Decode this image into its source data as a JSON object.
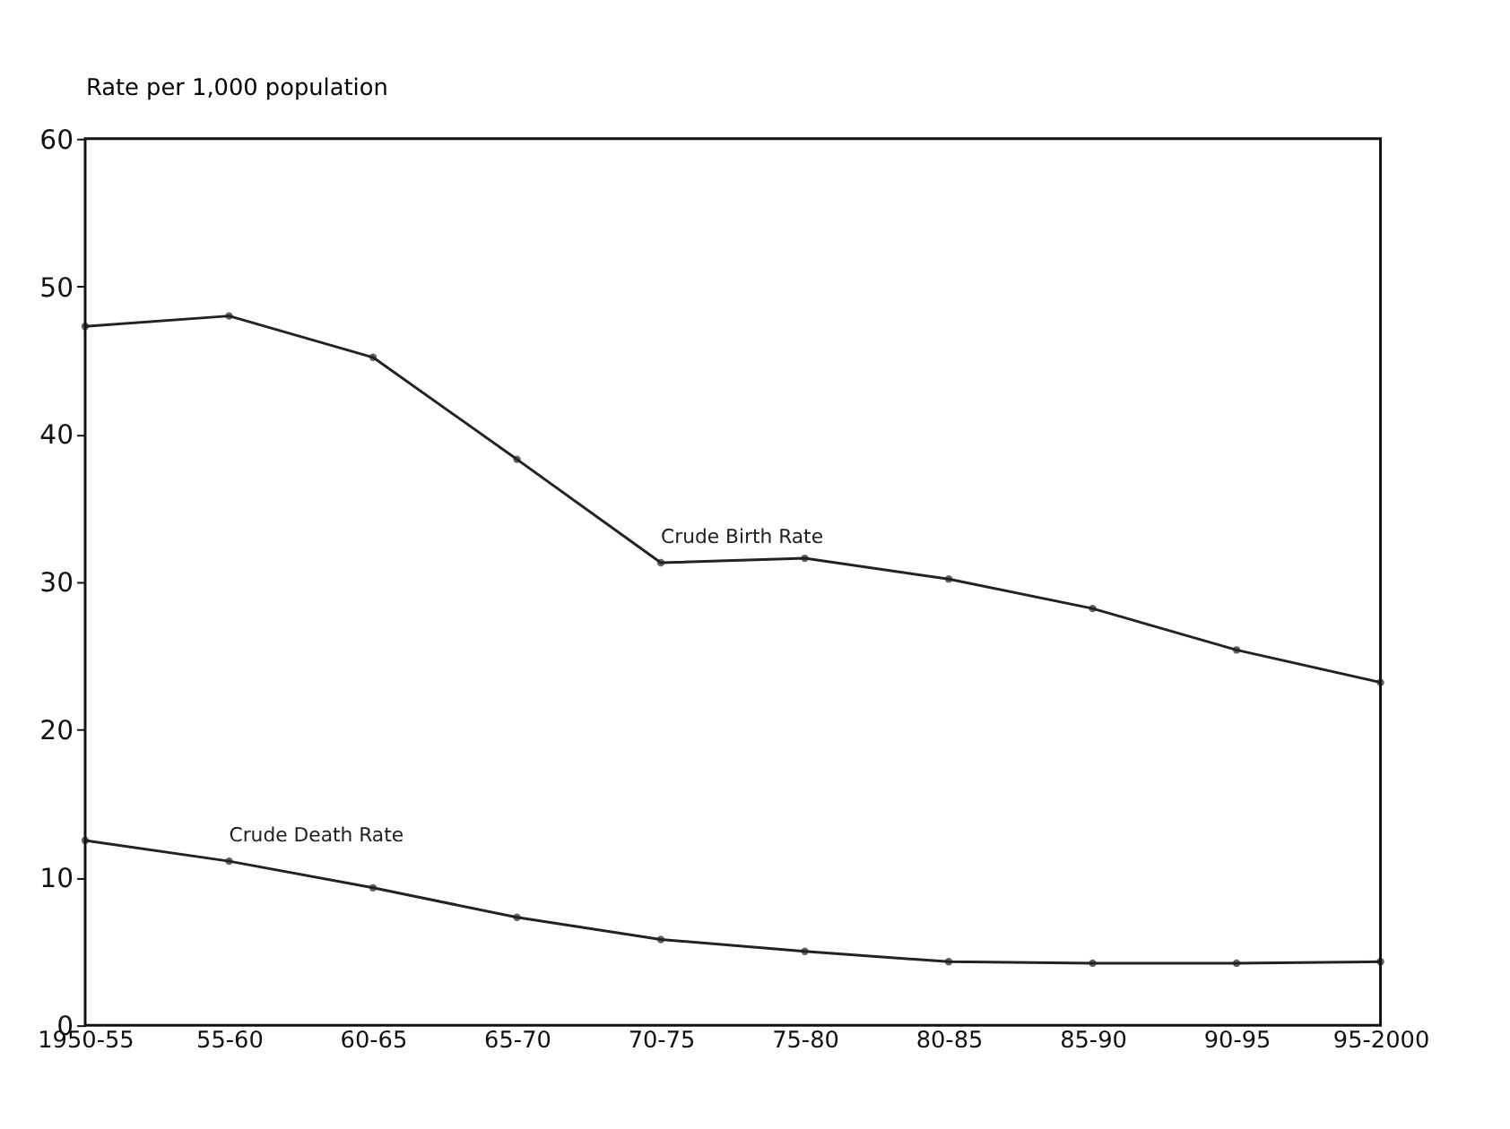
{
  "chart_data": {
    "type": "line",
    "ylabel": "Rate per 1,000 population",
    "categories": [
      "1950-55",
      "55-60",
      "60-65",
      "65-70",
      "70-75",
      "75-80",
      "80-85",
      "85-90",
      "90-95",
      "95-2000"
    ],
    "series": [
      {
        "name": "Crude Birth Rate",
        "color": "#222222",
        "values": [
          47.3,
          48.0,
          45.2,
          38.3,
          31.3,
          31.6,
          30.2,
          28.2,
          25.4,
          23.2
        ]
      },
      {
        "name": "Crude Death Rate",
        "color": "#222222",
        "values": [
          12.5,
          11.1,
          9.3,
          7.3,
          5.8,
          5.0,
          4.3,
          4.2,
          4.2,
          4.3
        ]
      }
    ],
    "ylim": [
      0,
      60
    ],
    "yticks": [
      0,
      10,
      20,
      30,
      40,
      50,
      60
    ],
    "grid": false,
    "marker": "circle",
    "line_style": "solid"
  }
}
